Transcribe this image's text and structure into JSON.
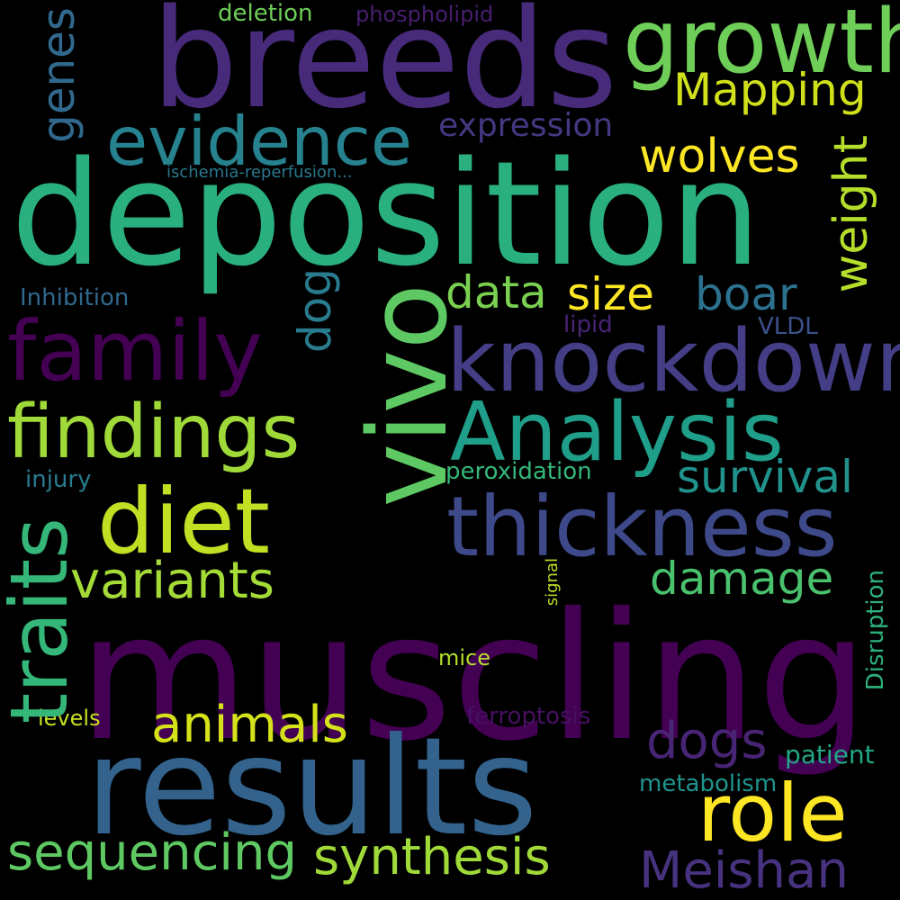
{
  "colors": {
    "background": "#000000",
    "palette": [
      "#440154",
      "#482878",
      "#3e4a89",
      "#31688e",
      "#26828e",
      "#1f9e89",
      "#35b779",
      "#6ece58",
      "#b5de2b",
      "#fde725"
    ]
  },
  "words": [
    {
      "text": "muscling",
      "color": "#440154"
    },
    {
      "text": "deposition",
      "color": "#2ab07f"
    },
    {
      "text": "vivo",
      "color": "#5ec962"
    },
    {
      "text": "breeds",
      "color": "#472a7a"
    },
    {
      "text": "results",
      "color": "#33638d"
    },
    {
      "text": "growth",
      "color": "#6ece58"
    },
    {
      "text": "knockdown",
      "color": "#433e85"
    },
    {
      "text": "Analysis",
      "color": "#1f9e89"
    },
    {
      "text": "thickness",
      "color": "#3e4989"
    },
    {
      "text": "family",
      "color": "#440154"
    },
    {
      "text": "findings",
      "color": "#a0da39"
    },
    {
      "text": "evidence",
      "color": "#26828e"
    },
    {
      "text": "diet",
      "color": "#c2df23"
    },
    {
      "text": "traits",
      "color": "#35b779"
    },
    {
      "text": "role",
      "color": "#fde725"
    },
    {
      "text": "Mapping",
      "color": "#d0e11c"
    },
    {
      "text": "wolves",
      "color": "#fde725"
    },
    {
      "text": "variants",
      "color": "#a5db36"
    },
    {
      "text": "animals",
      "color": "#d5e21a"
    },
    {
      "text": "sequencing",
      "color": "#5ec962"
    },
    {
      "text": "synthesis",
      "color": "#a0da39"
    },
    {
      "text": "Meishan",
      "color": "#46327e"
    },
    {
      "text": "data",
      "color": "#7ad151"
    },
    {
      "text": "size",
      "color": "#fde725"
    },
    {
      "text": "boar",
      "color": "#2c728e"
    },
    {
      "text": "survival",
      "color": "#21918c"
    },
    {
      "text": "damage",
      "color": "#4ac16d"
    },
    {
      "text": "dogs",
      "color": "#482475"
    },
    {
      "text": "weight",
      "color": "#b5de2b"
    },
    {
      "text": "genes",
      "color": "#31688e"
    },
    {
      "text": "dog",
      "color": "#287c8e"
    },
    {
      "text": "expression",
      "color": "#453882"
    },
    {
      "text": "deletion",
      "color": "#6ece58"
    },
    {
      "text": "phospholipid",
      "color": "#481f70"
    },
    {
      "text": "ischemia-reperfusion...",
      "color": "#2a788e"
    },
    {
      "text": "Inhibition",
      "color": "#31688e"
    },
    {
      "text": "lipid",
      "color": "#482475"
    },
    {
      "text": "VLDL",
      "color": "#3b528b"
    },
    {
      "text": "peroxidation",
      "color": "#35b779"
    },
    {
      "text": "injury",
      "color": "#297b8e"
    },
    {
      "text": "signal",
      "color": "#c2df23"
    },
    {
      "text": "Disruption",
      "color": "#2db27d"
    },
    {
      "text": "mice",
      "color": "#b5de2b"
    },
    {
      "text": "levels",
      "color": "#c8e020"
    },
    {
      "text": "ferroptosis",
      "color": "#471063"
    },
    {
      "text": "patient",
      "color": "#22a785"
    },
    {
      "text": "metabolism",
      "color": "#1f948c"
    }
  ]
}
